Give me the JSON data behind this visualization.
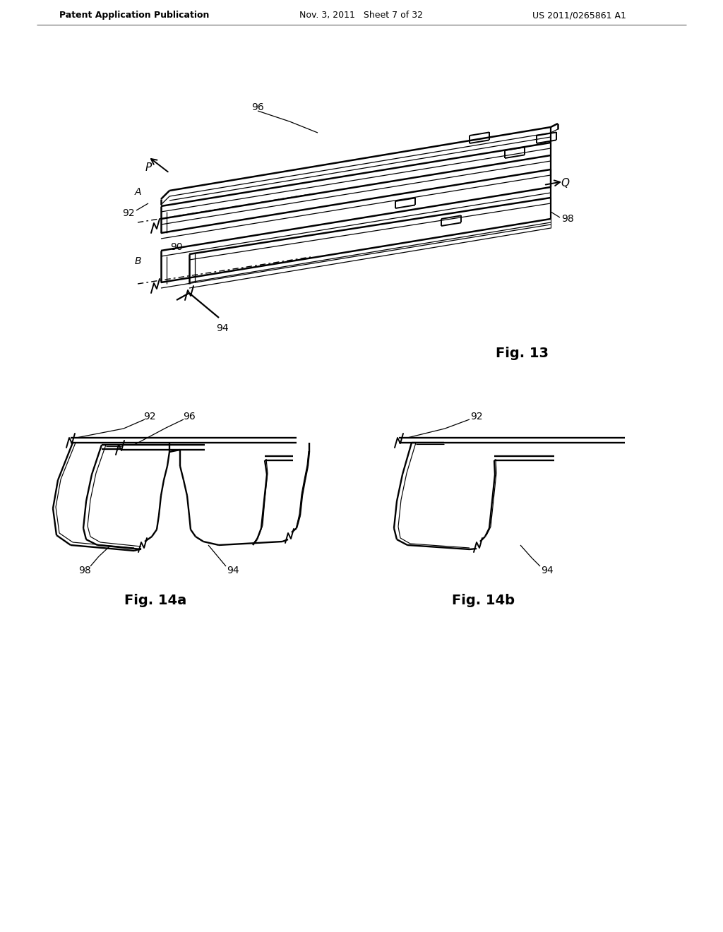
{
  "bg_color": "#ffffff",
  "header_left": "Patent Application Publication",
  "header_mid": "Nov. 3, 2011   Sheet 7 of 32",
  "header_right": "US 2011/0265861 A1",
  "fig13_label": "Fig. 13",
  "fig14a_label": "Fig. 14a",
  "fig14b_label": "Fig. 14b"
}
